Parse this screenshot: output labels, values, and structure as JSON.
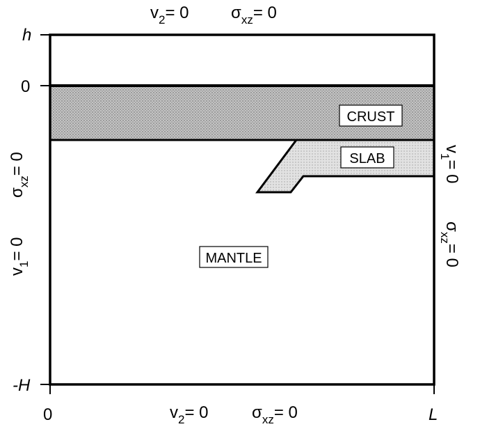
{
  "axis": {
    "top": "h",
    "surface": "0",
    "bottom": "-H",
    "left": "0",
    "right": "L"
  },
  "boundary_conditions": {
    "top_v_base": "v",
    "top_v_sub": "2",
    "top_v_rhs": "= 0",
    "top_sigma_base": "σ",
    "top_sigma_sub": "xz",
    "top_sigma_rhs": "= 0",
    "bottom_v_base": "v",
    "bottom_v_sub": "2",
    "bottom_v_rhs": "= 0",
    "bottom_sigma_base": "σ",
    "bottom_sigma_sub": "xz",
    "bottom_sigma_rhs": "= 0",
    "left_sigma_base": "σ",
    "left_sigma_sub": "xz",
    "left_sigma_rhs": "= 0",
    "left_v_base": "v",
    "left_v_sub": "1",
    "left_v_rhs": "= 0",
    "right_v_base": "v",
    "right_v_sub": "1",
    "right_v_rhs": "= 0",
    "right_sigma_base": "σ",
    "right_sigma_sub": "xz",
    "right_sigma_rhs": "= 0"
  },
  "regions": {
    "crust": "CRUST",
    "slab": "SLAB",
    "mantle": "MANTLE"
  },
  "colors": {
    "crust_fill": "#b4b4b4",
    "slab_fill": "#dcdcdc",
    "line": "#000000",
    "label_box": "#ffffff"
  }
}
